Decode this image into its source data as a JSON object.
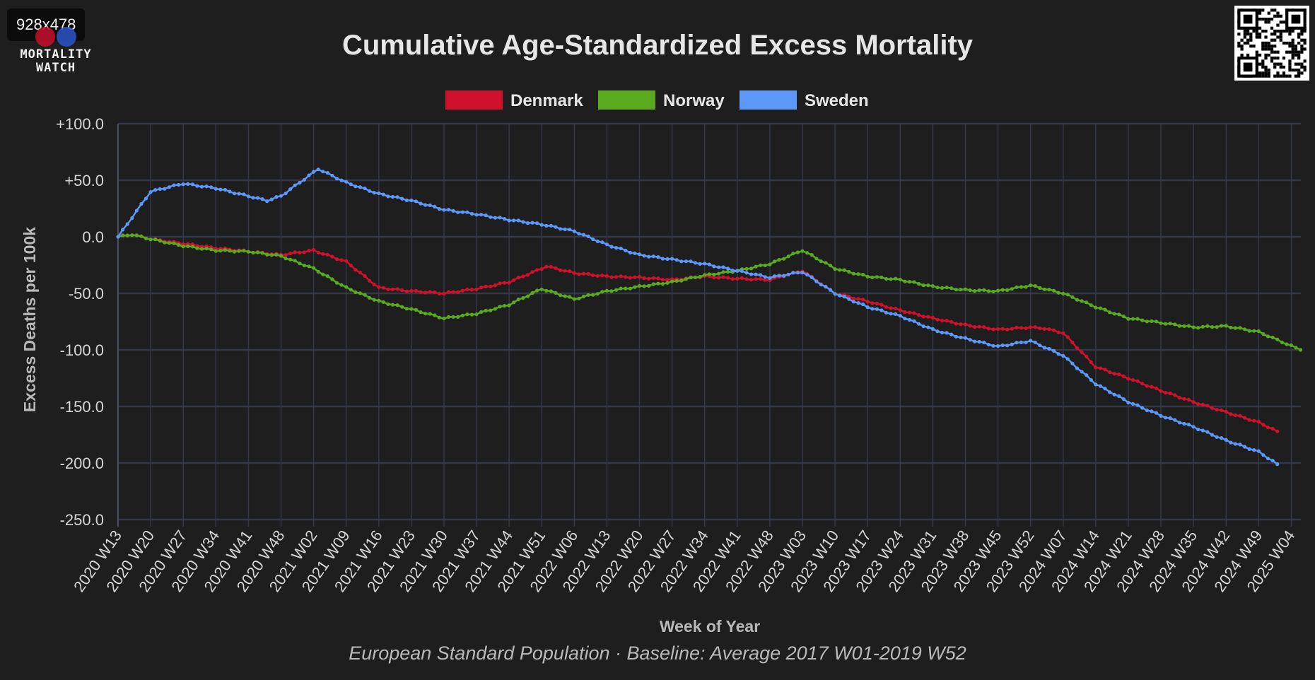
{
  "badge": {
    "size_label": "928x478"
  },
  "logo": {
    "line1": "MORTALITY",
    "line2": "WATCH"
  },
  "colors": {
    "background": "#1e1e1e",
    "grid": "#343846",
    "text": "#e6e6e6",
    "denmark": "#d0112b",
    "norway": "#5aaa1f",
    "sweden": "#5b98f7"
  },
  "chart_data": {
    "type": "line",
    "title": "Cumulative Age-Standardized Excess Mortality",
    "subtitle": "European Standard Population · Baseline: Average 2017 W01-2019 W52",
    "xlabel": "Week of Year",
    "ylabel": "Excess Deaths per 100k",
    "ylim": [
      -250,
      100
    ],
    "y_ticks": [
      100,
      50,
      0,
      -50,
      -100,
      -150,
      -200,
      -250
    ],
    "y_tick_labels": [
      "+100.0",
      "+50.0",
      "0.0",
      "-50.0",
      "-100.0",
      "-150.0",
      "-200.0",
      "-250.0"
    ],
    "x_ticks": [
      "2020 W13",
      "2020 W20",
      "2020 W27",
      "2020 W34",
      "2020 W41",
      "2020 W48",
      "2021 W02",
      "2021 W09",
      "2021 W16",
      "2021 W23",
      "2021 W30",
      "2021 W37",
      "2021 W44",
      "2021 W51",
      "2022 W06",
      "2022 W13",
      "2022 W20",
      "2022 W27",
      "2022 W34",
      "2022 W41",
      "2022 W48",
      "2023 W03",
      "2023 W10",
      "2023 W17",
      "2023 W24",
      "2023 W31",
      "2023 W38",
      "2023 W45",
      "2023 W52",
      "2024 W07",
      "2024 W14",
      "2024 W21",
      "2024 W28",
      "2024 W35",
      "2024 W42",
      "2024 W49",
      "2025 W04"
    ],
    "grid": true,
    "legend_position": "top-center",
    "series": [
      {
        "name": "Denmark",
        "color": "#d0112b",
        "end_week": "2025 W01",
        "points": [
          [
            "2020 W13",
            0
          ],
          [
            "2020 W16",
            2
          ],
          [
            "2020 W20",
            -2
          ],
          [
            "2020 W27",
            -6
          ],
          [
            "2020 W34",
            -10
          ],
          [
            "2020 W41",
            -13
          ],
          [
            "2020 W48",
            -16
          ],
          [
            "2021 W02",
            -12
          ],
          [
            "2021 W09",
            -22
          ],
          [
            "2021 W16",
            -45
          ],
          [
            "2021 W23",
            -48
          ],
          [
            "2021 W30",
            -50
          ],
          [
            "2021 W37",
            -46
          ],
          [
            "2021 W44",
            -40
          ],
          [
            "2021 W51",
            -28
          ],
          [
            "2021 W52",
            -26
          ],
          [
            "2022 W06",
            -32
          ],
          [
            "2022 W13",
            -35
          ],
          [
            "2022 W20",
            -36
          ],
          [
            "2022 W27",
            -38
          ],
          [
            "2022 W34",
            -35
          ],
          [
            "2022 W41",
            -37
          ],
          [
            "2022 W48",
            -38
          ],
          [
            "2023 W03",
            -30
          ],
          [
            "2023 W10",
            -50
          ],
          [
            "2023 W17",
            -57
          ],
          [
            "2023 W24",
            -65
          ],
          [
            "2023 W31",
            -72
          ],
          [
            "2023 W38",
            -78
          ],
          [
            "2023 W45",
            -82
          ],
          [
            "2023 W52",
            -80
          ],
          [
            "2024 W03",
            -81
          ],
          [
            "2024 W07",
            -85
          ],
          [
            "2024 W14",
            -115
          ],
          [
            "2024 W21",
            -125
          ],
          [
            "2024 W28",
            -136
          ],
          [
            "2024 W35",
            -146
          ],
          [
            "2024 W42",
            -155
          ],
          [
            "2024 W49",
            -164
          ],
          [
            "2025 W01",
            -172
          ]
        ]
      },
      {
        "name": "Norway",
        "color": "#5aaa1f",
        "end_week": "2025 W06",
        "points": [
          [
            "2020 W13",
            0
          ],
          [
            "2020 W16",
            2
          ],
          [
            "2020 W20",
            -2
          ],
          [
            "2020 W27",
            -8
          ],
          [
            "2020 W34",
            -12
          ],
          [
            "2020 W41",
            -13
          ],
          [
            "2020 W48",
            -17
          ],
          [
            "2021 W02",
            -28
          ],
          [
            "2021 W09",
            -45
          ],
          [
            "2021 W16",
            -57
          ],
          [
            "2021 W23",
            -64
          ],
          [
            "2021 W30",
            -72
          ],
          [
            "2021 W37",
            -68
          ],
          [
            "2021 W44",
            -60
          ],
          [
            "2021 W51",
            -46
          ],
          [
            "2022 W06",
            -55
          ],
          [
            "2022 W13",
            -48
          ],
          [
            "2022 W20",
            -44
          ],
          [
            "2022 W27",
            -40
          ],
          [
            "2022 W34",
            -34
          ],
          [
            "2022 W41",
            -30
          ],
          [
            "2022 W48",
            -24
          ],
          [
            "2023 W03",
            -12
          ],
          [
            "2023 W10",
            -28
          ],
          [
            "2023 W17",
            -35
          ],
          [
            "2023 W24",
            -38
          ],
          [
            "2023 W31",
            -44
          ],
          [
            "2023 W38",
            -47
          ],
          [
            "2023 W45",
            -48
          ],
          [
            "2023 W52",
            -43
          ],
          [
            "2024 W07",
            -50
          ],
          [
            "2024 W14",
            -62
          ],
          [
            "2024 W21",
            -72
          ],
          [
            "2024 W28",
            -76
          ],
          [
            "2024 W35",
            -80
          ],
          [
            "2024 W42",
            -79
          ],
          [
            "2024 W49",
            -84
          ],
          [
            "2025 W06",
            -100
          ]
        ]
      },
      {
        "name": "Sweden",
        "color": "#5b98f7",
        "end_week": "2025 W01",
        "points": [
          [
            "2020 W13",
            0
          ],
          [
            "2020 W20",
            40
          ],
          [
            "2020 W27",
            47
          ],
          [
            "2020 W34",
            43
          ],
          [
            "2020 W41",
            36
          ],
          [
            "2020 W45",
            32
          ],
          [
            "2020 W48",
            36
          ],
          [
            "2021 W02",
            57
          ],
          [
            "2021 W03",
            60
          ],
          [
            "2021 W09",
            48
          ],
          [
            "2021 W16",
            38
          ],
          [
            "2021 W23",
            32
          ],
          [
            "2021 W30",
            24
          ],
          [
            "2021 W37",
            20
          ],
          [
            "2021 W44",
            15
          ],
          [
            "2021 W51",
            11
          ],
          [
            "2022 W06",
            5
          ],
          [
            "2022 W13",
            -7
          ],
          [
            "2022 W20",
            -16
          ],
          [
            "2022 W27",
            -20
          ],
          [
            "2022 W34",
            -24
          ],
          [
            "2022 W41",
            -30
          ],
          [
            "2022 W48",
            -36
          ],
          [
            "2023 W03",
            -31
          ],
          [
            "2023 W10",
            -50
          ],
          [
            "2023 W17",
            -62
          ],
          [
            "2023 W24",
            -70
          ],
          [
            "2023 W31",
            -82
          ],
          [
            "2023 W38",
            -90
          ],
          [
            "2023 W45",
            -97
          ],
          [
            "2023 W52",
            -92
          ],
          [
            "2024 W07",
            -105
          ],
          [
            "2024 W14",
            -130
          ],
          [
            "2024 W21",
            -146
          ],
          [
            "2024 W28",
            -158
          ],
          [
            "2024 W35",
            -168
          ],
          [
            "2024 W42",
            -180
          ],
          [
            "2024 W49",
            -190
          ],
          [
            "2025 W01",
            -201
          ]
        ]
      }
    ]
  }
}
